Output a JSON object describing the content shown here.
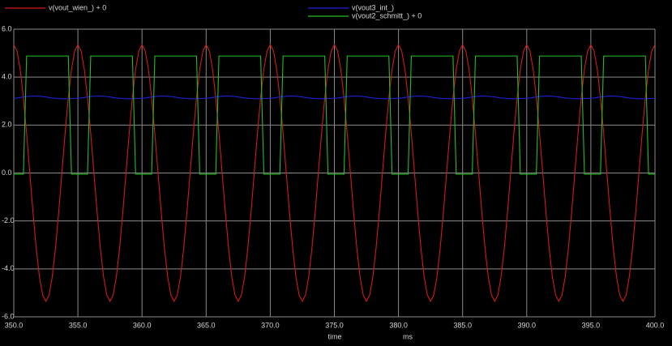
{
  "chart_data": {
    "type": "line",
    "x_label": "time",
    "x_unit": "ms",
    "xlim": [
      350,
      400
    ],
    "xticks": [
      {
        "value": 350,
        "label": "350.0"
      },
      {
        "value": 355,
        "label": "355.0"
      },
      {
        "value": 360,
        "label": "360.0"
      },
      {
        "value": 365,
        "label": "365.0"
      },
      {
        "value": 370,
        "label": "370.0"
      },
      {
        "value": 375,
        "label": "375.0"
      },
      {
        "value": 380,
        "label": "380.0"
      },
      {
        "value": 385,
        "label": "385.0"
      },
      {
        "value": 390,
        "label": "390.0"
      },
      {
        "value": 395,
        "label": "395.0"
      },
      {
        "value": 400,
        "label": "400.0"
      }
    ],
    "ylim": [
      -6,
      6
    ],
    "yticks": [
      {
        "value": 6,
        "label": "6.0"
      },
      {
        "value": 4,
        "label": "4.0"
      },
      {
        "value": 2,
        "label": "2.0"
      },
      {
        "value": 0,
        "label": "0.0"
      },
      {
        "value": -2,
        "label": "-2.0"
      },
      {
        "value": -4,
        "label": "-4.0"
      },
      {
        "value": -6,
        "label": "-6.0"
      }
    ],
    "grid": true,
    "x": [
      350,
      350.25,
      350.5,
      350.75,
      351,
      351.25,
      351.5,
      351.75,
      352,
      352.25,
      352.5,
      352.75,
      353,
      353.25,
      353.5,
      353.75,
      354,
      354.25,
      354.5,
      354.75,
      355,
      355.25,
      355.5,
      355.75,
      356,
      356.25,
      356.5,
      356.75,
      357,
      357.25,
      357.5,
      357.75,
      358,
      358.25,
      358.5,
      358.75,
      359,
      359.25,
      359.5,
      359.75,
      360,
      360.25,
      360.5,
      360.75,
      361,
      361.25,
      361.5,
      361.75,
      362,
      362.25,
      362.5,
      362.75,
      363,
      363.25,
      363.5,
      363.75,
      364,
      364.25,
      364.5,
      364.75,
      365,
      365.25,
      365.5,
      365.75,
      366,
      366.25,
      366.5,
      366.75,
      367,
      367.25,
      367.5,
      367.75,
      368,
      368.25,
      368.5,
      368.75,
      369,
      369.25,
      369.5,
      369.75,
      370,
      370.25,
      370.5,
      370.75,
      371,
      371.25,
      371.5,
      371.75,
      372,
      372.25,
      372.5,
      372.75,
      373,
      373.25,
      373.5,
      373.75,
      374,
      374.25,
      374.5,
      374.75,
      375,
      375.25,
      375.5,
      375.75,
      376,
      376.25,
      376.5,
      376.75,
      377,
      377.25,
      377.5,
      377.75,
      378,
      378.25,
      378.5,
      378.75,
      379,
      379.25,
      379.5,
      379.75,
      380,
      380.25,
      380.5,
      380.75,
      381,
      381.25,
      381.5,
      381.75,
      382,
      382.25,
      382.5,
      382.75,
      383,
      383.25,
      383.5,
      383.75,
      384,
      384.25,
      384.5,
      384.75,
      385,
      385.25,
      385.5,
      385.75,
      386,
      386.25,
      386.5,
      386.75,
      387,
      387.25,
      387.5,
      387.75,
      388,
      388.25,
      388.5,
      388.75,
      389,
      389.25,
      389.5,
      389.75,
      390,
      390.25,
      390.5,
      390.75,
      391,
      391.25,
      391.5,
      391.75,
      392,
      392.25,
      392.5,
      392.75,
      393,
      393.25,
      393.5,
      393.75,
      394,
      394.25,
      394.5,
      394.75,
      395,
      395.25,
      395.5,
      395.75,
      396,
      396.25,
      396.5,
      396.75,
      397,
      397.25,
      397.5,
      397.75,
      398,
      398.25,
      398.5,
      398.75,
      399,
      399.25,
      399.5,
      399.75,
      400
    ],
    "series": [
      {
        "name": "v(vout_wien_) + 0",
        "color": "#d41818",
        "values": [
          5.35,
          5.09,
          4.33,
          3.14,
          1.65,
          0,
          -1.65,
          -3.14,
          -4.33,
          -5.09,
          -5.35,
          -5.09,
          -4.33,
          -3.14,
          -1.65,
          0,
          1.65,
          3.14,
          4.33,
          5.09,
          5.35,
          5.09,
          4.33,
          3.14,
          1.65,
          0,
          -1.65,
          -3.14,
          -4.33,
          -5.09,
          -5.35,
          -5.09,
          -4.33,
          -3.14,
          -1.65,
          0,
          1.65,
          3.14,
          4.33,
          5.09,
          5.35,
          5.09,
          4.33,
          3.14,
          1.65,
          0,
          -1.65,
          -3.14,
          -4.33,
          -5.09,
          -5.35,
          -5.09,
          -4.33,
          -3.14,
          -1.65,
          0,
          1.65,
          3.14,
          4.33,
          5.09,
          5.35,
          5.09,
          4.33,
          3.14,
          1.65,
          0,
          -1.65,
          -3.14,
          -4.33,
          -5.09,
          -5.35,
          -5.09,
          -4.33,
          -3.14,
          -1.65,
          0,
          1.65,
          3.14,
          4.33,
          5.09,
          5.35,
          5.09,
          4.33,
          3.14,
          1.65,
          0,
          -1.65,
          -3.14,
          -4.33,
          -5.09,
          -5.35,
          -5.09,
          -4.33,
          -3.14,
          -1.65,
          0,
          1.65,
          3.14,
          4.33,
          5.09,
          5.35,
          5.09,
          4.33,
          3.14,
          1.65,
          0,
          -1.65,
          -3.14,
          -4.33,
          -5.09,
          -5.35,
          -5.09,
          -4.33,
          -3.14,
          -1.65,
          0,
          1.65,
          3.14,
          4.33,
          5.09,
          5.35,
          5.09,
          4.33,
          3.14,
          1.65,
          0,
          -1.65,
          -3.14,
          -4.33,
          -5.09,
          -5.35,
          -5.09,
          -4.33,
          -3.14,
          -1.65,
          0,
          1.65,
          3.14,
          4.33,
          5.09,
          5.35,
          5.09,
          4.33,
          3.14,
          1.65,
          0,
          -1.65,
          -3.14,
          -4.33,
          -5.09,
          -5.35,
          -5.09,
          -4.33,
          -3.14,
          -1.65,
          0,
          1.65,
          3.14,
          4.33,
          5.09,
          5.35,
          5.09,
          4.33,
          3.14,
          1.65,
          0,
          -1.65,
          -3.14,
          -4.33,
          -5.09,
          -5.35,
          -5.09,
          -4.33,
          -3.14,
          -1.65,
          0,
          1.65,
          3.14,
          4.33,
          5.09,
          5.35,
          5.09,
          4.33,
          3.14,
          1.65,
          0,
          -1.65,
          -3.14,
          -4.33,
          -5.09,
          -5.35,
          -5.09,
          -4.33,
          -3.14,
          -1.65,
          0,
          1.65,
          3.14,
          4.33,
          5.09,
          5.35
        ]
      },
      {
        "name": "v(vout3_int_)",
        "color": "#2020d8",
        "values": [
          3.12,
          3.13,
          3.15,
          3.17,
          3.19,
          3.2,
          3.21,
          3.21,
          3.2,
          3.19,
          3.17,
          3.15,
          3.13,
          3.12,
          3.11,
          3.1,
          3.1,
          3.1,
          3.11,
          3.11,
          3.12,
          3.13,
          3.15,
          3.17,
          3.19,
          3.2,
          3.21,
          3.21,
          3.2,
          3.19,
          3.17,
          3.15,
          3.13,
          3.12,
          3.11,
          3.1,
          3.1,
          3.1,
          3.11,
          3.11,
          3.12,
          3.13,
          3.15,
          3.17,
          3.19,
          3.2,
          3.21,
          3.21,
          3.2,
          3.19,
          3.17,
          3.15,
          3.13,
          3.12,
          3.11,
          3.1,
          3.1,
          3.1,
          3.11,
          3.11,
          3.12,
          3.13,
          3.15,
          3.17,
          3.19,
          3.2,
          3.21,
          3.21,
          3.2,
          3.19,
          3.17,
          3.15,
          3.13,
          3.12,
          3.11,
          3.1,
          3.1,
          3.1,
          3.11,
          3.11,
          3.12,
          3.13,
          3.15,
          3.17,
          3.19,
          3.2,
          3.21,
          3.21,
          3.2,
          3.19,
          3.17,
          3.15,
          3.13,
          3.12,
          3.11,
          3.1,
          3.1,
          3.1,
          3.11,
          3.11,
          3.12,
          3.13,
          3.15,
          3.17,
          3.19,
          3.2,
          3.21,
          3.21,
          3.2,
          3.19,
          3.17,
          3.15,
          3.13,
          3.12,
          3.11,
          3.1,
          3.1,
          3.1,
          3.11,
          3.11,
          3.12,
          3.13,
          3.15,
          3.17,
          3.19,
          3.2,
          3.21,
          3.21,
          3.2,
          3.19,
          3.17,
          3.15,
          3.13,
          3.12,
          3.11,
          3.1,
          3.1,
          3.1,
          3.11,
          3.11,
          3.12,
          3.13,
          3.15,
          3.17,
          3.19,
          3.2,
          3.21,
          3.21,
          3.2,
          3.19,
          3.17,
          3.15,
          3.13,
          3.12,
          3.11,
          3.1,
          3.1,
          3.1,
          3.11,
          3.11,
          3.12,
          3.13,
          3.15,
          3.17,
          3.19,
          3.2,
          3.21,
          3.21,
          3.2,
          3.19,
          3.17,
          3.15,
          3.13,
          3.12,
          3.11,
          3.1,
          3.1,
          3.1,
          3.11,
          3.11,
          3.12,
          3.13,
          3.15,
          3.17,
          3.19,
          3.2,
          3.21,
          3.21,
          3.2,
          3.19,
          3.17,
          3.15,
          3.13,
          3.12,
          3.11,
          3.1,
          3.1,
          3.1,
          3.11,
          3.11,
          3.12
        ]
      },
      {
        "name": "v(vout2_schmitt_) + 0",
        "color": "#20c020",
        "values": [
          -0.05,
          -0.05,
          -0.05,
          -0.05,
          4.88,
          4.88,
          4.88,
          4.88,
          4.88,
          4.88,
          4.88,
          4.88,
          4.88,
          4.88,
          4.88,
          4.88,
          4.88,
          4.88,
          -0.05,
          -0.05,
          -0.05,
          -0.05,
          -0.05,
          -0.05,
          4.88,
          4.88,
          4.88,
          4.88,
          4.88,
          4.88,
          4.88,
          4.88,
          4.88,
          4.88,
          4.88,
          4.88,
          4.88,
          4.88,
          -0.05,
          -0.05,
          -0.05,
          -0.05,
          -0.05,
          -0.05,
          4.88,
          4.88,
          4.88,
          4.88,
          4.88,
          4.88,
          4.88,
          4.88,
          4.88,
          4.88,
          4.88,
          4.88,
          4.88,
          4.88,
          -0.05,
          -0.05,
          -0.05,
          -0.05,
          -0.05,
          -0.05,
          4.88,
          4.88,
          4.88,
          4.88,
          4.88,
          4.88,
          4.88,
          4.88,
          4.88,
          4.88,
          4.88,
          4.88,
          4.88,
          4.88,
          -0.05,
          -0.05,
          -0.05,
          -0.05,
          -0.05,
          -0.05,
          4.88,
          4.88,
          4.88,
          4.88,
          4.88,
          4.88,
          4.88,
          4.88,
          4.88,
          4.88,
          4.88,
          4.88,
          4.88,
          4.88,
          -0.05,
          -0.05,
          -0.05,
          -0.05,
          -0.05,
          -0.05,
          4.88,
          4.88,
          4.88,
          4.88,
          4.88,
          4.88,
          4.88,
          4.88,
          4.88,
          4.88,
          4.88,
          4.88,
          4.88,
          4.88,
          -0.05,
          -0.05,
          -0.05,
          -0.05,
          -0.05,
          -0.05,
          4.88,
          4.88,
          4.88,
          4.88,
          4.88,
          4.88,
          4.88,
          4.88,
          4.88,
          4.88,
          4.88,
          4.88,
          4.88,
          4.88,
          -0.05,
          -0.05,
          -0.05,
          -0.05,
          -0.05,
          -0.05,
          4.88,
          4.88,
          4.88,
          4.88,
          4.88,
          4.88,
          4.88,
          4.88,
          4.88,
          4.88,
          4.88,
          4.88,
          4.88,
          4.88,
          -0.05,
          -0.05,
          -0.05,
          -0.05,
          -0.05,
          -0.05,
          4.88,
          4.88,
          4.88,
          4.88,
          4.88,
          4.88,
          4.88,
          4.88,
          4.88,
          4.88,
          4.88,
          4.88,
          4.88,
          4.88,
          -0.05,
          -0.05,
          -0.05,
          -0.05,
          -0.05,
          -0.05,
          4.88,
          4.88,
          4.88,
          4.88,
          4.88,
          4.88,
          4.88,
          4.88,
          4.88,
          4.88,
          4.88,
          4.88,
          4.88,
          4.88,
          -0.05,
          -0.05,
          -0.05
        ]
      }
    ]
  }
}
